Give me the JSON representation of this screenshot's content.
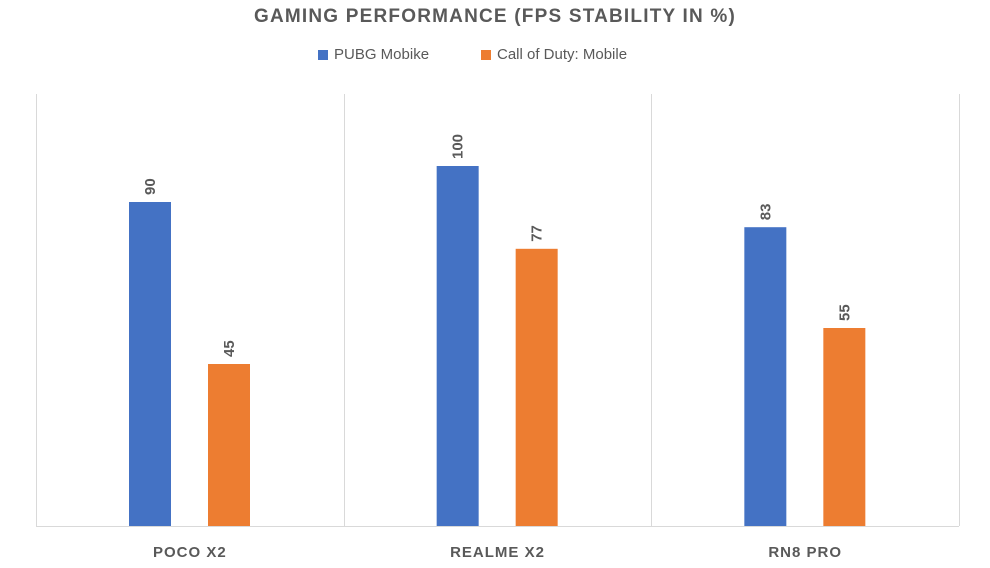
{
  "chart_data": {
    "type": "bar",
    "title": "GAMING PERFORMANCE (FPS STABILITY IN %)",
    "xlabel": "",
    "ylabel": "",
    "categories": [
      "POCO X2",
      "REALME X2",
      "RN8 PRO"
    ],
    "series": [
      {
        "name": "PUBG Mobike",
        "values": [
          90,
          100,
          83
        ],
        "color": "#4472C4"
      },
      {
        "name": "Call of Duty: Mobile",
        "values": [
          45,
          77,
          55
        ],
        "color": "#ED7D31"
      }
    ],
    "ylim": [
      0,
      120
    ],
    "grid": "vertical category separators",
    "legend_position": "top-center",
    "data_labels": "rotated vertical above bars"
  }
}
